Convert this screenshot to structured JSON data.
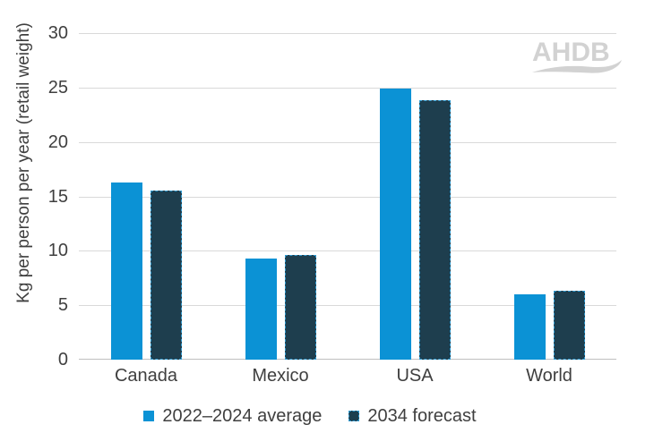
{
  "watermark": {
    "text": "AHDB"
  },
  "chart_data": {
    "type": "bar",
    "categories": [
      "Canada",
      "Mexico",
      "USA",
      "World"
    ],
    "series": [
      {
        "name": "2022–2024 average",
        "color": "#0b92d5",
        "values": [
          16.3,
          9.3,
          24.9,
          6.0
        ]
      },
      {
        "name": "2034 forecast",
        "color": "#1e3e4e",
        "values": [
          15.5,
          9.6,
          23.8,
          6.3
        ]
      }
    ],
    "title": "",
    "xlabel": "",
    "ylabel": "Kg per person per year (retail weight)",
    "ylim": [
      0,
      30
    ],
    "yticks": [
      0,
      5,
      10,
      15,
      20,
      25,
      30
    ],
    "grid": true,
    "legend_position": "bottom"
  },
  "colors": {
    "series_average": "#0b92d5",
    "series_forecast": "#1e3e4e",
    "gridline": "#d9d9d9",
    "axis_line": "#bfbfbf",
    "text": "#3f3f3f",
    "watermark": "#d2d2d2",
    "background": "#ffffff",
    "selection_dash": "#2f9ad0"
  }
}
